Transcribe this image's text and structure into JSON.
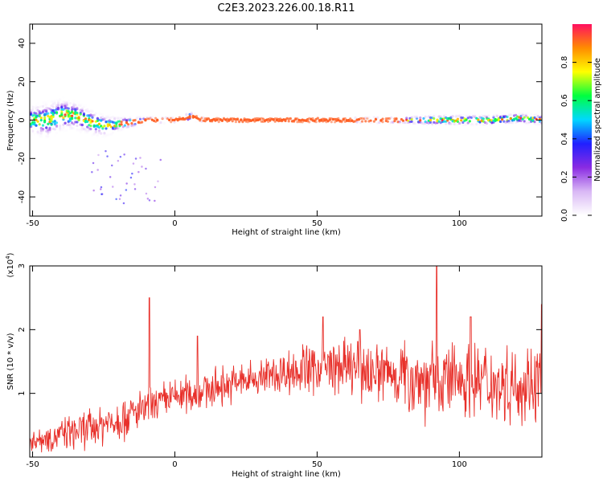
{
  "title": "C2E3.2023.226.00.18.R11",
  "chart_data": [
    {
      "type": "heatmap",
      "title": "C2E3.2023.226.00.18.R11",
      "xlabel": "Height of straight line (km)",
      "ylabel": "Frequency (Hz)",
      "xlim": [
        -51,
        129
      ],
      "ylim": [
        -50,
        50
      ],
      "x_ticks": [
        "-50",
        "0",
        "50",
        "100"
      ],
      "y_ticks": [
        "-40",
        "-20",
        "0",
        "20",
        "40"
      ],
      "colorbar": {
        "label": "Normalized spectral amplitude",
        "range": [
          0,
          1
        ],
        "ticks": [
          "0.0",
          "0.2",
          "0.4",
          "0.6",
          "0.8"
        ],
        "colors": [
          "#ffffff",
          "#d9b8f5",
          "#8a2be2",
          "#2020ff",
          "#00d8ff",
          "#00ff40",
          "#ffff00",
          "#ff8c00",
          "#ff1060"
        ]
      },
      "ridge": {
        "description_values": "dominant frequency vs height",
        "x": [
          -50,
          -45,
          -40,
          -35,
          -30,
          -25,
          -20,
          -15,
          -10,
          -5,
          0,
          5,
          10,
          20,
          30,
          40,
          50,
          60,
          70,
          80,
          90,
          100,
          110,
          120,
          129
        ],
        "y": [
          0,
          0,
          3,
          2,
          -1,
          -3,
          -2,
          -1,
          0,
          0,
          0,
          2,
          0,
          0,
          0,
          0,
          0,
          0,
          0,
          0,
          0,
          0,
          0,
          1,
          0
        ],
        "width": [
          8,
          10,
          9,
          8,
          7,
          6,
          4,
          3,
          2,
          2,
          1,
          3,
          1,
          1,
          1,
          1,
          1,
          1,
          2,
          2,
          3,
          3,
          3,
          3,
          3
        ]
      }
    },
    {
      "type": "line",
      "xlabel": "Height of straight line (km)",
      "ylabel": "SNR (10 * v/v)",
      "y_scale_label": "(x10",
      "y_scale_exponent": "4",
      "xlim": [
        -51,
        129
      ],
      "ylim": [
        0,
        3
      ],
      "x_ticks": [
        "-50",
        "0",
        "50",
        "100"
      ],
      "y_ticks": [
        "1",
        "2",
        "3"
      ],
      "color": "#e8302a",
      "trend": {
        "x": [
          -51,
          -40,
          -30,
          -20,
          -10,
          0,
          10,
          20,
          30,
          40,
          50,
          60,
          70,
          80,
          90,
          100,
          110,
          120,
          129
        ],
        "y": [
          0.25,
          0.35,
          0.45,
          0.6,
          0.75,
          0.95,
          1.05,
          1.15,
          1.25,
          1.35,
          1.4,
          1.4,
          1.35,
          1.3,
          1.2,
          1.25,
          1.2,
          1.15,
          1.2
        ],
        "amplitude": [
          0.15,
          0.2,
          0.25,
          0.3,
          0.25,
          0.25,
          0.25,
          0.25,
          0.25,
          0.3,
          0.35,
          0.35,
          0.4,
          0.45,
          0.55,
          0.5,
          0.5,
          0.5,
          0.5
        ]
      },
      "peaks": [
        {
          "x": -9,
          "y": 2.5
        },
        {
          "x": 52,
          "y": 2.2
        },
        {
          "x": 92,
          "y": 3.0
        },
        {
          "x": 129,
          "y": 2.4
        },
        {
          "x": 8,
          "y": 1.9
        },
        {
          "x": 65,
          "y": 2.0
        },
        {
          "x": 104,
          "y": 2.2
        }
      ]
    }
  ]
}
